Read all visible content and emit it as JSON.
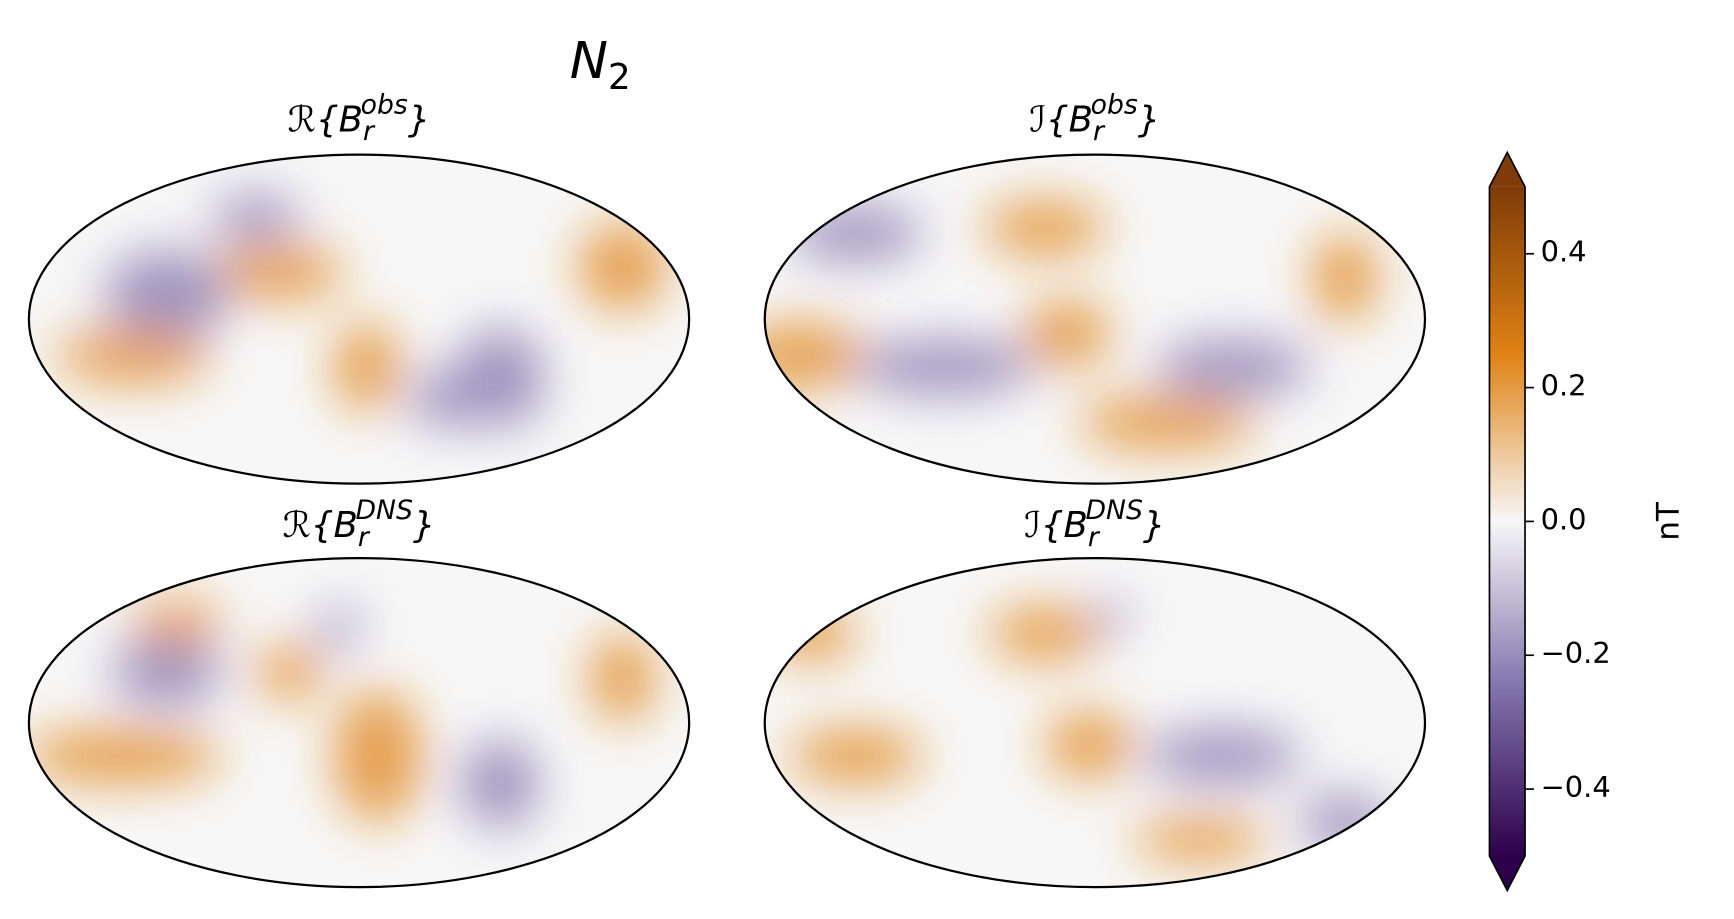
{
  "figure": {
    "title": {
      "main": "N",
      "subscript": "2"
    },
    "panels": [
      {
        "prefix": "ℛ{B",
        "subscript": "r",
        "superscript": "obs",
        "suffix": "}"
      },
      {
        "prefix": "ℐ{B",
        "subscript": "r",
        "superscript": "obs",
        "suffix": "}"
      },
      {
        "prefix": "ℛ{B",
        "subscript": "r",
        "superscript": "DNS",
        "suffix": "}"
      },
      {
        "prefix": "ℐ{B",
        "subscript": "r",
        "superscript": "DNS",
        "suffix": "}"
      }
    ],
    "colorbar": {
      "label": "nT",
      "lim": [
        -0.5,
        0.5
      ],
      "ticks": [
        0.4,
        0.2,
        {
          "value": 0,
          "label": "0.0"
        },
        {
          "value": -0.2,
          "label": "−0.2"
        },
        {
          "value": -0.4,
          "label": "−0.4"
        }
      ],
      "colors": [
        "#2d004b",
        "#8073ac",
        "#f7f7f7",
        "#e08214",
        "#7f3b08"
      ]
    }
  }
}
